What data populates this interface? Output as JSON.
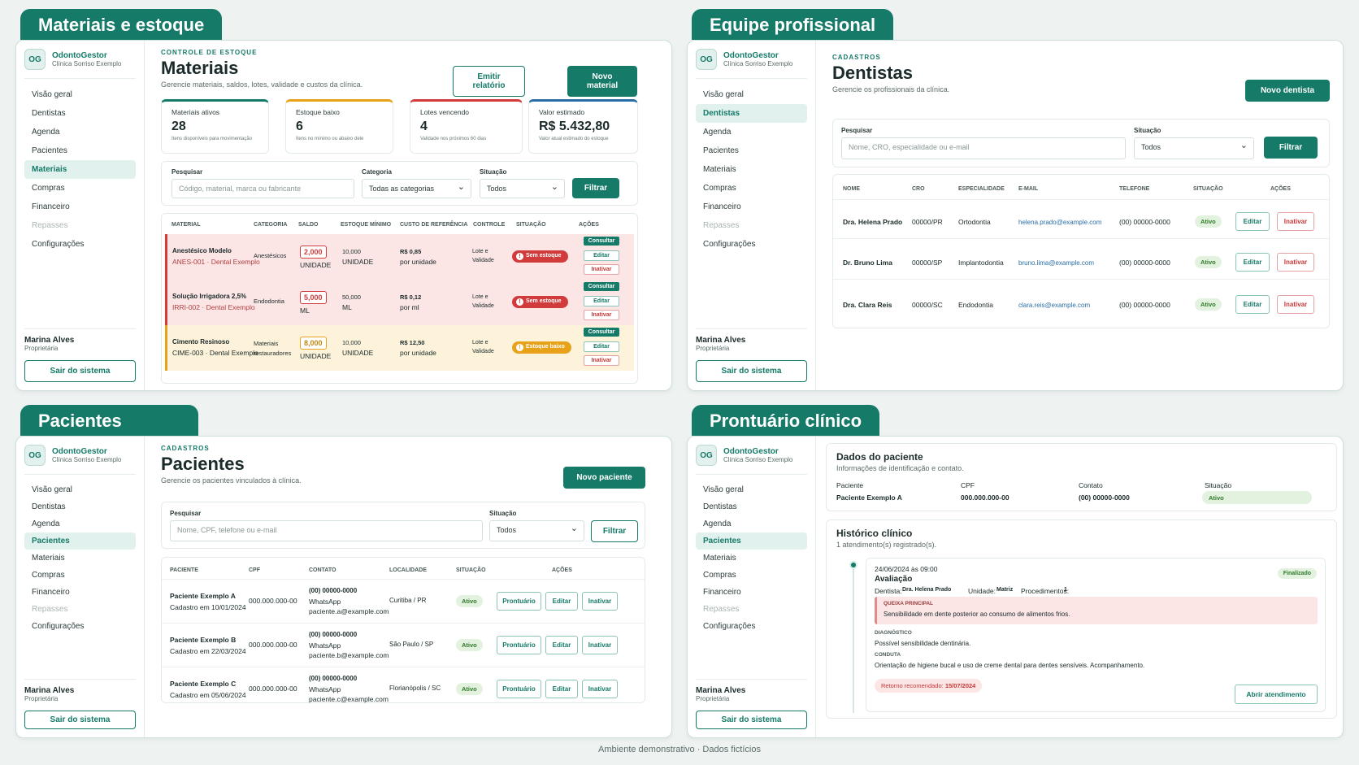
{
  "footer": "Ambiente demonstrativo · Dados fictícios",
  "sidebar": {
    "logo": "OG",
    "brand": "OdontoGestor",
    "clinic": "Clínica Sorriso Exemplo",
    "items": [
      "Visão geral",
      "Dentistas",
      "Agenda",
      "Pacientes",
      "Materiais",
      "Compras",
      "Financeiro",
      "Repasses",
      "Configurações"
    ],
    "user_name": "Marina Alves",
    "user_role": "Proprietária",
    "logout": "Sair do sistema"
  },
  "materiais": {
    "tab": "Materiais e estoque",
    "eyebrow": "CONTROLE DE ESTOQUE",
    "title": "Materiais",
    "subtitle": "Gerencie materiais, saldos, lotes, validade e custos da clínica.",
    "report_btn": "Emitir relatório",
    "new_btn": "Novo material",
    "kpis": [
      {
        "title": "Materiais ativos",
        "value": "28",
        "desc": "Itens disponíveis para movimentação",
        "color": "#157a68"
      },
      {
        "title": "Estoque baixo",
        "value": "6",
        "desc": "Itens no mínimo ou abaixo dele",
        "color": "#e8a21a"
      },
      {
        "title": "Lotes vencendo",
        "value": "4",
        "desc": "Validade nos próximos 60 dias",
        "color": "#d23b3b"
      },
      {
        "title": "Valor estimado",
        "value": "R$ 5.432,80",
        "desc": "Valor atual estimado do estoque",
        "color": "#2a6ea8"
      }
    ],
    "filter": {
      "search_label": "Pesquisar",
      "search_ph": "Código, material, marca ou fabricante",
      "cat_label": "Categoria",
      "cat_value": "Todas as categorias",
      "sit_label": "Situação",
      "sit_value": "Todos",
      "btn": "Filtrar"
    },
    "headers": [
      "MATERIAL",
      "CATEGORIA",
      "SALDO",
      "ESTOQUE MÍNIMO",
      "CUSTO DE REFERÊNCIA",
      "CONTROLE",
      "SITUAÇÃO",
      "AÇÕES"
    ],
    "rows": [
      {
        "name": "Anestésico Modelo",
        "code": "ANES-001 · Dental Exemplo",
        "cat": "Anestésicos",
        "qty": "2,000",
        "unit": "UNIDADE",
        "min": "10,000",
        "min_unit": "UNIDADE",
        "cost": "R$ 0,85",
        "cost_unit": "por unidade",
        "ctrl1": "Lote e",
        "ctrl2": "Validade",
        "status": "Sem estoque"
      },
      {
        "name": "Solução Irrigadora 2,5%",
        "code": "IRRI-002 · Dental Exemplo",
        "cat": "Endodontia",
        "qty": "5,000",
        "unit": "ML",
        "min": "50,000",
        "min_unit": "ML",
        "cost": "R$ 0,12",
        "cost_unit": "por ml",
        "ctrl1": "Lote e",
        "ctrl2": "Validade",
        "status": "Sem estoque"
      },
      {
        "name": "Cimento Resinoso",
        "code": "CIME-003 · Dental Exemplo",
        "cat": "Materiais restauradores",
        "qty": "8,000",
        "unit": "UNIDADE",
        "min": "10,000",
        "min_unit": "UNIDADE",
        "cost": "R$ 12,50",
        "cost_unit": "por unidade",
        "ctrl1": "Lote e",
        "ctrl2": "Validade",
        "status": "Estoque baixo"
      }
    ],
    "act": {
      "consult": "Consultar",
      "edit": "Editar",
      "inactivate": "Inativar"
    }
  },
  "dentistas": {
    "tab": "Equipe profissional",
    "eyebrow": "CADASTROS",
    "title": "Dentistas",
    "subtitle": "Gerencie os profissionais da clínica.",
    "new_btn": "Novo dentista",
    "filter": {
      "search_label": "Pesquisar",
      "search_ph": "Nome, CRO, especialidade ou e-mail",
      "sit_label": "Situação",
      "sit_value": "Todos",
      "btn": "Filtrar"
    },
    "headers": [
      "NOME",
      "CRO",
      "ESPECIALIDADE",
      "E-MAIL",
      "TELEFONE",
      "SITUAÇÃO",
      "AÇÕES"
    ],
    "rows": [
      {
        "name": "Dra. Helena Prado",
        "cro": "00000/PR",
        "spec": "Ortodontia",
        "email": "helena.prado@example.com",
        "phone": "(00) 00000-0000",
        "status": "Ativo"
      },
      {
        "name": "Dr. Bruno Lima",
        "cro": "00000/SP",
        "spec": "Implantodontia",
        "email": "bruno.lima@example.com",
        "phone": "(00) 00000-0000",
        "status": "Ativo"
      },
      {
        "name": "Dra. Clara Reis",
        "cro": "00000/SC",
        "spec": "Endodontia",
        "email": "clara.reis@example.com",
        "phone": "(00) 00000-0000",
        "status": "Ativo"
      }
    ],
    "act": {
      "edit": "Editar",
      "inactivate": "Inativar"
    }
  },
  "pacientes": {
    "tab": "Pacientes",
    "eyebrow": "CADASTROS",
    "title": "Pacientes",
    "subtitle": "Gerencie os pacientes vinculados à clínica.",
    "new_btn": "Novo paciente",
    "filter": {
      "search_label": "Pesquisar",
      "search_ph": "Nome, CPF, telefone ou e-mail",
      "sit_label": "Situação",
      "sit_value": "Todos",
      "btn": "Filtrar"
    },
    "headers": [
      "PACIENTE",
      "CPF",
      "CONTATO",
      "LOCALIDADE",
      "SITUAÇÃO",
      "AÇÕES"
    ],
    "rows": [
      {
        "name": "Paciente Exemplo A",
        "since": "Cadastro em 10/01/2024",
        "cpf": "000.000.000-00",
        "phone": "(00) 00000-0000",
        "wa": "WhatsApp",
        "email": "paciente.a@example.com",
        "city": "Curitiba / PR",
        "status": "Ativo"
      },
      {
        "name": "Paciente Exemplo B",
        "since": "Cadastro em 22/03/2024",
        "cpf": "000.000.000-00",
        "phone": "(00) 00000-0000",
        "wa": "WhatsApp",
        "email": "paciente.b@example.com",
        "city": "São Paulo / SP",
        "status": "Ativo"
      },
      {
        "name": "Paciente Exemplo C",
        "since": "Cadastro em 05/06/2024",
        "cpf": "000.000.000-00",
        "phone": "(00) 00000-0000",
        "wa": "WhatsApp",
        "email": "paciente.c@example.com",
        "city": "Florianópolis / SC",
        "status": "Ativo"
      }
    ],
    "act": {
      "record": "Prontuário",
      "edit": "Editar",
      "inactivate": "Inativar"
    }
  },
  "prontuario": {
    "tab": "Prontuário clínico",
    "patient_title": "Dados do paciente",
    "patient_sub": "Informações de identificação e contato.",
    "labels": [
      "Paciente",
      "CPF",
      "Contato",
      "Situação"
    ],
    "values": [
      "Paciente Exemplo A",
      "000.000.000-00",
      "(00) 00000-0000",
      "Ativo"
    ],
    "history_title": "Histórico clínico",
    "history_sub": "1 atendimento(s) registrado(s).",
    "entry": {
      "date": "24/06/2024 às 09:00",
      "title": "Avaliação",
      "status": "Finalizado",
      "dentist_lbl": "Dentista:",
      "dentist": "Dra. Helena Prado",
      "unit_lbl": "Unidade:",
      "unit": "Matriz",
      "proc_lbl": "Procedimentos:",
      "proc": "1",
      "complaint_lbl": "QUEIXA PRINCIPAL",
      "complaint": "Sensibilidade em dente posterior ao consumo de alimentos frios.",
      "diag_lbl": "DIAGNÓSTICO",
      "diag": "Possível sensibilidade dentinária.",
      "conduct_lbl": "CONDUTA",
      "conduct": "Orientação de higiene bucal e uso de creme dental para dentes sensíveis. Acompanhamento.",
      "return_lbl": "Retorno recomendado:",
      "return": "15/07/2024",
      "open_btn": "Abrir atendimento"
    }
  }
}
